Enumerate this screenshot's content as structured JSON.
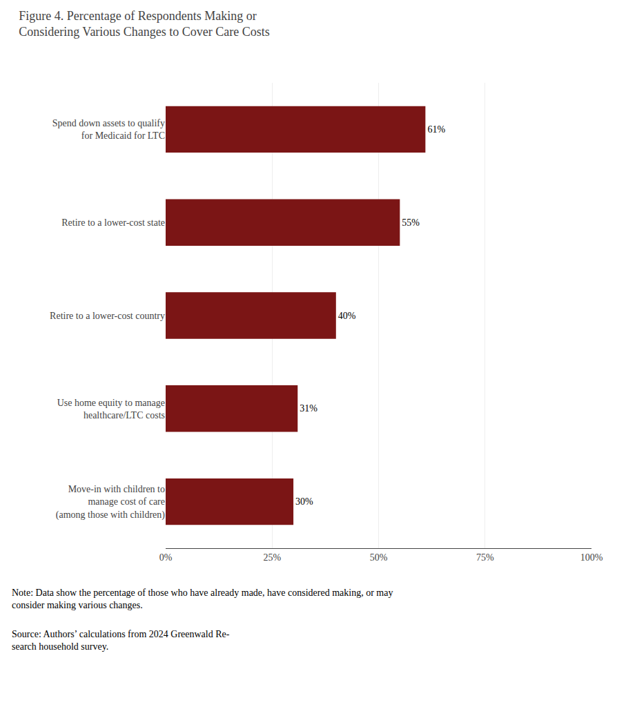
{
  "chart_data": {
    "type": "bar",
    "orientation": "horizontal",
    "title": "Figure 4. Percentage of Respondents Making or\nConsidering Various Changes to Cover Care Costs",
    "categories": [
      "Spend down assets to qualify\nfor Medicaid for LTC",
      "Retire to a lower-cost state",
      "Retire to a lower-cost country",
      "Use home equity to manage\nhealthcare/LTC costs",
      "Move-in with children to\nmanage cost of care\n(among those with children)"
    ],
    "values": [
      61,
      55,
      40,
      31,
      30
    ],
    "value_labels": [
      "61%",
      "55%",
      "40%",
      "31%",
      "30%"
    ],
    "data_labels": true,
    "color": "#7B1515",
    "xlim": [
      0,
      100
    ],
    "xticks": [
      {
        "value": 0,
        "label": "0%"
      },
      {
        "value": 25,
        "label": "25%"
      },
      {
        "value": 50,
        "label": "50%"
      },
      {
        "value": 75,
        "label": "75%"
      },
      {
        "value": 100,
        "label": "100%"
      }
    ],
    "grid": true,
    "annotations": [
      "Note: Data show the percentage of those who have already made, have considered making, or may consider making various changes.",
      "Source: Authors’ calculations from 2024 Greenwald Re-\nsearch household survey."
    ]
  }
}
